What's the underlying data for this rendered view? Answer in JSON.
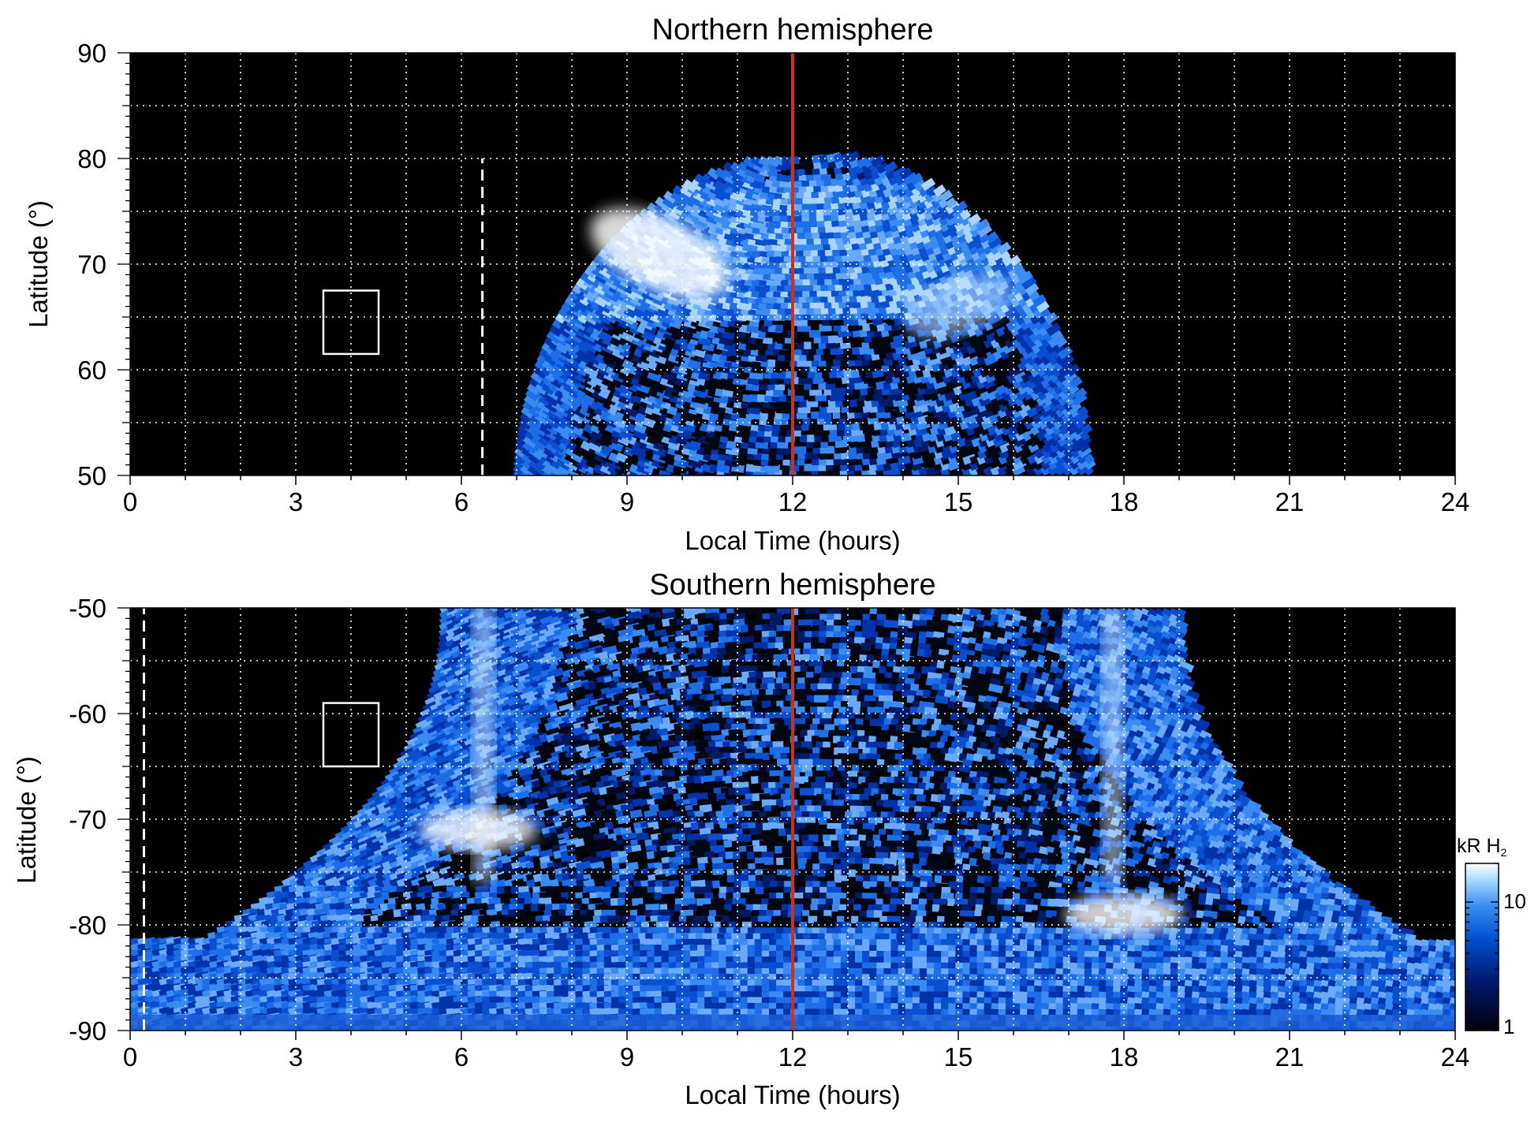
{
  "chart_data": [
    {
      "type": "heatmap",
      "title": "Northern hemisphere",
      "xlabel": "Local Time (hours)",
      "ylabel": "Latitude (°)",
      "xlim": [
        0,
        24
      ],
      "ylim": [
        50,
        90
      ],
      "xticks": [
        "0",
        "3",
        "6",
        "9",
        "12",
        "15",
        "18",
        "21",
        "24"
      ],
      "yticks": [
        "50",
        "60",
        "70",
        "80",
        "90"
      ],
      "grid": true,
      "background": "#000000",
      "noon_line": {
        "x": 12,
        "color": "#cc3311"
      },
      "dashed_line": {
        "x": 6.38,
        "y_range": [
          50,
          80
        ],
        "color": "#ffffff"
      },
      "box": {
        "x": [
          3.5,
          4.5
        ],
        "y": [
          61.5,
          67.5
        ],
        "color": "#ffffff"
      },
      "emission": {
        "illuminated_region": {
          "x_range_at_50": [
            7.0,
            17.3
          ],
          "peak_latitude": 80
        },
        "auroral_oval": {
          "latitude_range": [
            65,
            78
          ]
        },
        "bright_spots": [
          {
            "x": 9.6,
            "y": 71,
            "level": "bright"
          },
          {
            "x": 15.0,
            "y": 66,
            "level": "moderate"
          }
        ]
      }
    },
    {
      "type": "heatmap",
      "title": "Southern hemisphere",
      "xlabel": "Local Time (hours)",
      "ylabel": "Latitude (°)",
      "xlim": [
        0,
        24
      ],
      "ylim": [
        -90,
        -50
      ],
      "xticks": [
        "0",
        "3",
        "6",
        "9",
        "12",
        "15",
        "18",
        "21",
        "24"
      ],
      "yticks": [
        "-90",
        "-80",
        "-70",
        "-60",
        "-50"
      ],
      "grid": true,
      "background": "#000000",
      "noon_line": {
        "x": 12,
        "color": "#cc3311"
      },
      "dashed_line": {
        "x": 0.25,
        "y_range": [
          -90,
          -50
        ],
        "color": "#ffffff"
      },
      "box": {
        "x": [
          3.5,
          4.5
        ],
        "y": [
          -65,
          -59
        ],
        "color": "#ffffff"
      },
      "emission": {
        "illuminated_region": {
          "x_range_at_minus50": [
            5.6,
            19.0
          ],
          "polar_cap_below": -80
        },
        "auroral_arcs": [
          {
            "x": 6.4,
            "level": "bright"
          },
          {
            "x": 17.8,
            "level": "bright"
          }
        ],
        "bright_spots": [
          {
            "x": 6.3,
            "y": -71,
            "level": "bright"
          },
          {
            "x": 18.0,
            "y": -79,
            "level": "bright"
          }
        ]
      }
    }
  ],
  "colorbar": {
    "label": "kR H",
    "label_subscript": "2",
    "ticks": [
      "1",
      "10"
    ],
    "scale": "log",
    "range": [
      1,
      20
    ],
    "colors": [
      "#000008",
      "#0030a0",
      "#2a7fe8",
      "#9fd4ff",
      "#ffffff"
    ]
  }
}
